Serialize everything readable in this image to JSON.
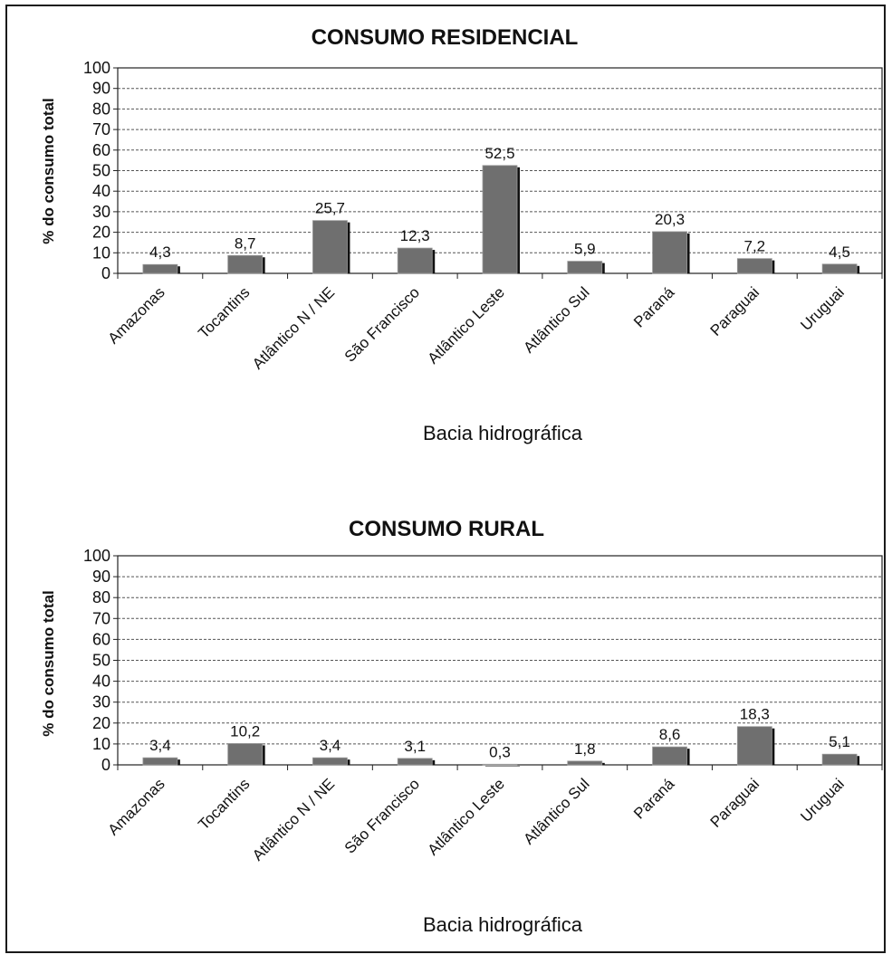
{
  "chart_data": [
    {
      "type": "bar",
      "title": "CONSUMO RESIDENCIAL",
      "xlabel": "Bacia hidrográfica",
      "ylabel": "% do consumo total",
      "ylim": [
        0,
        100
      ],
      "yticks": [
        0,
        10,
        20,
        30,
        40,
        50,
        60,
        70,
        80,
        90,
        100
      ],
      "grid": true,
      "bar_color": "#6f6f6f",
      "categories": [
        "Amazonas",
        "Tocantins",
        "Atlântico N / NE",
        "São Francisco",
        "Atlântico Leste",
        "Atlântico Sul",
        "Paraná",
        "Paraguai",
        "Uruguai"
      ],
      "values": [
        4.3,
        8.7,
        25.7,
        12.3,
        52.5,
        5.9,
        20.3,
        7.2,
        4.5
      ],
      "data_labels": [
        "4,3",
        "8,7",
        "25,7",
        "12,3",
        "52,5",
        "5,9",
        "20,3",
        "7,2",
        "4,5"
      ]
    },
    {
      "type": "bar",
      "title": "CONSUMO RURAL",
      "xlabel": "Bacia hidrográfica",
      "ylabel": "% do consumo total",
      "ylim": [
        0,
        100
      ],
      "yticks": [
        0,
        10,
        20,
        30,
        40,
        50,
        60,
        70,
        80,
        90,
        100
      ],
      "grid": true,
      "bar_color": "#6f6f6f",
      "categories": [
        "Amazonas",
        "Tocantins",
        "Atlântico N / NE",
        "São Francisco",
        "Atlântico Leste",
        "Atlântico Sul",
        "Paraná",
        "Paraguai",
        "Uruguai"
      ],
      "values": [
        3.4,
        10.2,
        3.4,
        3.1,
        0.3,
        1.8,
        8.6,
        18.3,
        5.1
      ],
      "data_labels": [
        "3,4",
        "10,2",
        "3,4",
        "3,1",
        "0,3",
        "1,8",
        "8,6",
        "18,3",
        "5,1"
      ]
    }
  ]
}
